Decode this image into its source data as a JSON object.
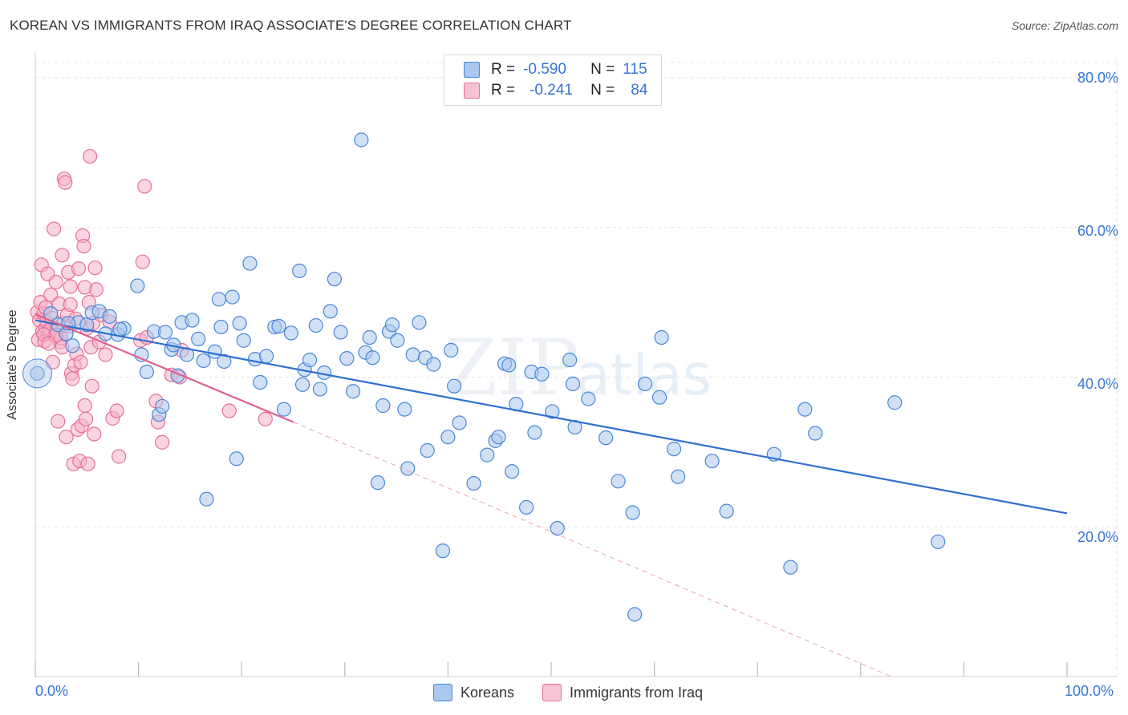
{
  "header": {
    "title": "KOREAN VS IMMIGRANTS FROM IRAQ ASSOCIATE'S DEGREE CORRELATION CHART",
    "source": "Source: ZipAtlas.com"
  },
  "colors": {
    "blue": "#4a86d8",
    "blue_fill": "#a9c8ef",
    "pink": "#e66f9a",
    "pink_fill": "#f6b3c8",
    "tick_text": "#3575d4"
  },
  "legend": {
    "row1": {
      "r_label": "R =",
      "r_value": "-0.590",
      "n_label": "N =",
      "n_value": "115"
    },
    "row2": {
      "r_label": "R =",
      "r_value": "-0.241",
      "n_label": "N =",
      "n_value": "84"
    }
  },
  "chart_data": {
    "type": "scatter",
    "title": "KOREAN VS IMMIGRANTS FROM IRAQ ASSOCIATE'S DEGREE CORRELATION CHART",
    "xlabel": "",
    "ylabel": "Associate's Degree",
    "xlim": [
      0,
      100
    ],
    "ylim": [
      0,
      80
    ],
    "x_tick_labels": [
      "0.0%",
      "100.0%"
    ],
    "y_ticks": [
      20,
      40,
      60,
      80
    ],
    "y_tick_labels": [
      "20.0%",
      "40.0%",
      "60.0%",
      "80.0%"
    ],
    "grid": true,
    "legend_position": "top-center",
    "series": [
      {
        "name": "Koreans",
        "color": "#4a86d8",
        "trend": {
          "x0": 0,
          "y0": 47.6,
          "x1": 100,
          "y1": 21.8,
          "dashed_to": null
        },
        "points": [
          [
            0.2,
            40.5
          ],
          [
            1.5,
            48.5
          ],
          [
            2.2,
            47.0
          ],
          [
            3.0,
            45.8
          ],
          [
            3.6,
            44.2
          ],
          [
            4.2,
            47.3
          ],
          [
            5.0,
            47.0
          ],
          [
            5.5,
            48.6
          ],
          [
            6.2,
            48.8
          ],
          [
            6.8,
            45.8
          ],
          [
            7.2,
            48.1
          ],
          [
            8.0,
            45.7
          ],
          [
            8.6,
            46.5
          ],
          [
            9.9,
            52.2
          ],
          [
            10.3,
            43.0
          ],
          [
            10.8,
            40.7
          ],
          [
            11.5,
            46.1
          ],
          [
            12.0,
            35.0
          ],
          [
            12.3,
            36.1
          ],
          [
            13.2,
            43.7
          ],
          [
            13.4,
            44.3
          ],
          [
            13.8,
            40.2
          ],
          [
            14.2,
            47.3
          ],
          [
            14.7,
            43.0
          ],
          [
            15.2,
            47.6
          ],
          [
            15.8,
            45.1
          ],
          [
            16.3,
            42.2
          ],
          [
            16.6,
            23.7
          ],
          [
            17.4,
            43.4
          ],
          [
            17.8,
            50.4
          ],
          [
            18.3,
            42.1
          ],
          [
            19.1,
            50.7
          ],
          [
            19.5,
            29.1
          ],
          [
            19.8,
            47.2
          ],
          [
            20.2,
            44.9
          ],
          [
            20.8,
            55.2
          ],
          [
            21.3,
            42.4
          ],
          [
            21.8,
            39.3
          ],
          [
            22.4,
            42.8
          ],
          [
            23.2,
            46.7
          ],
          [
            23.6,
            46.8
          ],
          [
            24.1,
            35.7
          ],
          [
            24.8,
            45.9
          ],
          [
            25.6,
            54.2
          ],
          [
            25.9,
            39.0
          ],
          [
            26.1,
            41.0
          ],
          [
            26.6,
            42.3
          ],
          [
            27.2,
            46.9
          ],
          [
            27.6,
            38.4
          ],
          [
            28.0,
            40.6
          ],
          [
            28.6,
            48.8
          ],
          [
            29.0,
            53.1
          ],
          [
            29.6,
            46.0
          ],
          [
            30.2,
            42.5
          ],
          [
            30.8,
            38.1
          ],
          [
            31.6,
            71.7
          ],
          [
            32.0,
            43.3
          ],
          [
            32.4,
            45.3
          ],
          [
            32.7,
            42.6
          ],
          [
            33.2,
            25.9
          ],
          [
            33.7,
            36.2
          ],
          [
            34.3,
            46.1
          ],
          [
            34.6,
            47.0
          ],
          [
            35.1,
            44.9
          ],
          [
            35.8,
            35.7
          ],
          [
            36.1,
            27.8
          ],
          [
            36.6,
            43.0
          ],
          [
            37.2,
            47.3
          ],
          [
            37.8,
            42.6
          ],
          [
            38.0,
            30.2
          ],
          [
            38.6,
            41.7
          ],
          [
            39.5,
            16.8
          ],
          [
            40.0,
            32.0
          ],
          [
            40.6,
            38.8
          ],
          [
            41.1,
            33.9
          ],
          [
            42.5,
            25.8
          ],
          [
            43.8,
            29.6
          ],
          [
            44.6,
            31.5
          ],
          [
            44.9,
            32.0
          ],
          [
            45.5,
            41.8
          ],
          [
            45.9,
            41.6
          ],
          [
            46.2,
            27.4
          ],
          [
            46.6,
            36.4
          ],
          [
            47.6,
            22.6
          ],
          [
            48.1,
            40.7
          ],
          [
            48.4,
            32.6
          ],
          [
            49.1,
            40.4
          ],
          [
            50.1,
            35.4
          ],
          [
            50.6,
            19.8
          ],
          [
            51.8,
            42.3
          ],
          [
            52.1,
            39.1
          ],
          [
            52.3,
            33.3
          ],
          [
            53.6,
            37.1
          ],
          [
            55.3,
            31.9
          ],
          [
            56.5,
            26.1
          ],
          [
            57.9,
            21.9
          ],
          [
            58.1,
            8.3
          ],
          [
            59.1,
            39.1
          ],
          [
            60.5,
            37.3
          ],
          [
            61.9,
            30.4
          ],
          [
            62.3,
            26.7
          ],
          [
            65.6,
            28.8
          ],
          [
            67.0,
            22.1
          ],
          [
            71.6,
            29.7
          ],
          [
            73.2,
            14.6
          ],
          [
            74.6,
            35.7
          ],
          [
            75.6,
            32.5
          ],
          [
            83.3,
            36.6
          ],
          [
            87.5,
            18.0
          ],
          [
            18.0,
            46.7
          ],
          [
            3.2,
            47.2
          ],
          [
            8.2,
            46.4
          ],
          [
            12.6,
            46.0
          ],
          [
            40.3,
            43.6
          ],
          [
            60.7,
            45.3
          ]
        ]
      },
      {
        "name": "Immigrants from Iraq",
        "color": "#e66f9a",
        "trend": {
          "x0": 0,
          "y0": 48.4,
          "x1": 25,
          "y1": 34.0,
          "dashed_to": {
            "x": 100,
            "y": -10
          }
        },
        "points": [
          [
            0.2,
            48.7
          ],
          [
            0.3,
            45.0
          ],
          [
            0.4,
            47.6
          ],
          [
            0.5,
            50.0
          ],
          [
            0.6,
            55.0
          ],
          [
            0.7,
            46.1
          ],
          [
            0.8,
            48.5
          ],
          [
            0.9,
            44.8
          ],
          [
            1.0,
            46.6
          ],
          [
            1.1,
            47.4
          ],
          [
            1.2,
            53.8
          ],
          [
            1.3,
            45.9
          ],
          [
            1.4,
            46.3
          ],
          [
            1.5,
            51.0
          ],
          [
            1.6,
            47.9
          ],
          [
            1.7,
            42.0
          ],
          [
            1.8,
            59.8
          ],
          [
            1.9,
            45.6
          ],
          [
            2.0,
            52.7
          ],
          [
            2.1,
            46.2
          ],
          [
            2.2,
            34.1
          ],
          [
            2.3,
            49.8
          ],
          [
            2.4,
            44.7
          ],
          [
            2.5,
            45.2
          ],
          [
            2.6,
            56.3
          ],
          [
            2.7,
            47.2
          ],
          [
            2.8,
            66.5
          ],
          [
            2.9,
            66.0
          ],
          [
            3.0,
            32.0
          ],
          [
            3.1,
            48.3
          ],
          [
            3.2,
            54.0
          ],
          [
            3.3,
            46.8
          ],
          [
            3.4,
            52.1
          ],
          [
            3.5,
            40.5
          ],
          [
            3.6,
            39.8
          ],
          [
            3.7,
            28.4
          ],
          [
            3.8,
            41.6
          ],
          [
            3.9,
            47.8
          ],
          [
            4.0,
            43.1
          ],
          [
            4.1,
            33.0
          ],
          [
            4.2,
            54.5
          ],
          [
            4.3,
            28.8
          ],
          [
            4.4,
            42.0
          ],
          [
            4.5,
            33.5
          ],
          [
            4.6,
            58.9
          ],
          [
            4.7,
            57.5
          ],
          [
            4.8,
            36.2
          ],
          [
            4.9,
            34.4
          ],
          [
            5.0,
            46.5
          ],
          [
            5.1,
            28.4
          ],
          [
            5.2,
            50.0
          ],
          [
            5.3,
            69.5
          ],
          [
            5.4,
            44.0
          ],
          [
            5.5,
            38.8
          ],
          [
            5.6,
            47.2
          ],
          [
            5.7,
            32.4
          ],
          [
            5.8,
            54.6
          ],
          [
            5.9,
            51.7
          ],
          [
            6.2,
            44.7
          ],
          [
            6.4,
            48.3
          ],
          [
            6.8,
            43.0
          ],
          [
            7.2,
            47.4
          ],
          [
            7.5,
            34.5
          ],
          [
            7.9,
            35.5
          ],
          [
            8.1,
            29.4
          ],
          [
            10.2,
            44.9
          ],
          [
            10.4,
            55.4
          ],
          [
            10.8,
            45.3
          ],
          [
            10.6,
            65.5
          ],
          [
            11.7,
            36.8
          ],
          [
            11.9,
            34.0
          ],
          [
            12.3,
            31.3
          ],
          [
            13.2,
            40.3
          ],
          [
            14.0,
            40.0
          ],
          [
            14.2,
            43.6
          ],
          [
            18.8,
            35.5
          ],
          [
            22.3,
            34.4
          ],
          [
            2.0,
            45.6
          ],
          [
            1.0,
            49.3
          ],
          [
            0.8,
            45.7
          ],
          [
            1.3,
            44.5
          ],
          [
            3.4,
            49.7
          ],
          [
            2.6,
            44.0
          ],
          [
            4.8,
            52.0
          ]
        ]
      }
    ]
  },
  "bottom_legend": {
    "koreans": "Koreans",
    "iraq": "Immigrants from Iraq"
  },
  "watermark": {
    "zip": "ZIP",
    "atlas": "atlas"
  }
}
